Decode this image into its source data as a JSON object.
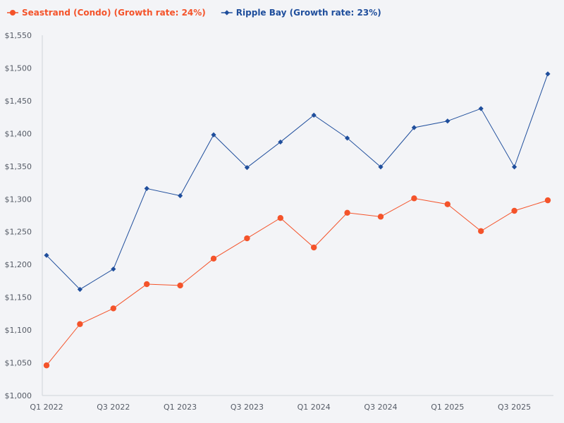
{
  "chart_data": {
    "type": "line",
    "title": "",
    "xlabel": "",
    "ylabel": "",
    "ylim": [
      1000,
      1550
    ],
    "yticks": [
      1000,
      1050,
      1100,
      1150,
      1200,
      1250,
      1300,
      1350,
      1400,
      1450,
      1500,
      1550
    ],
    "ytick_labels": [
      "$1,000",
      "$1,050",
      "$1,100",
      "$1,150",
      "$1,200",
      "$1,250",
      "$1,300",
      "$1,350",
      "$1,400",
      "$1,450",
      "$1,500",
      "$1,550"
    ],
    "categories": [
      "Q1 2022",
      "Q2 2022",
      "Q3 2022",
      "Q4 2022",
      "Q1 2023",
      "Q2 2023",
      "Q3 2023",
      "Q4 2023",
      "Q1 2024",
      "Q2 2024",
      "Q3 2024",
      "Q4 2024",
      "Q1 2025",
      "Q2 2025",
      "Q3 2025",
      "Q4 2025"
    ],
    "xtick_labels": [
      "Q1 2022",
      "",
      "Q3 2022",
      "",
      "Q1 2023",
      "",
      "Q3 2023",
      "",
      "Q1 2024",
      "",
      "Q3 2024",
      "",
      "Q1 2025",
      "",
      "Q3 2025",
      ""
    ],
    "legend_position": "top-left",
    "series": [
      {
        "name": "Seastrand (Condo) (Growth rate: 24%)",
        "color": "#f4532a",
        "marker": "circle",
        "values": [
          1046,
          1109,
          1133,
          1170,
          1168,
          1209,
          1240,
          1271,
          1226,
          1279,
          1273,
          1301,
          1292,
          1251,
          1282,
          1298
        ]
      },
      {
        "name": "Ripple Bay (Growth rate: 23%)",
        "color": "#1f4e9c",
        "marker": "diamond",
        "values": [
          1214,
          1162,
          1193,
          1316,
          1305,
          1398,
          1348,
          1387,
          1428,
          1393,
          1349,
          1409,
          1419,
          1438,
          1349,
          1491
        ]
      }
    ]
  }
}
